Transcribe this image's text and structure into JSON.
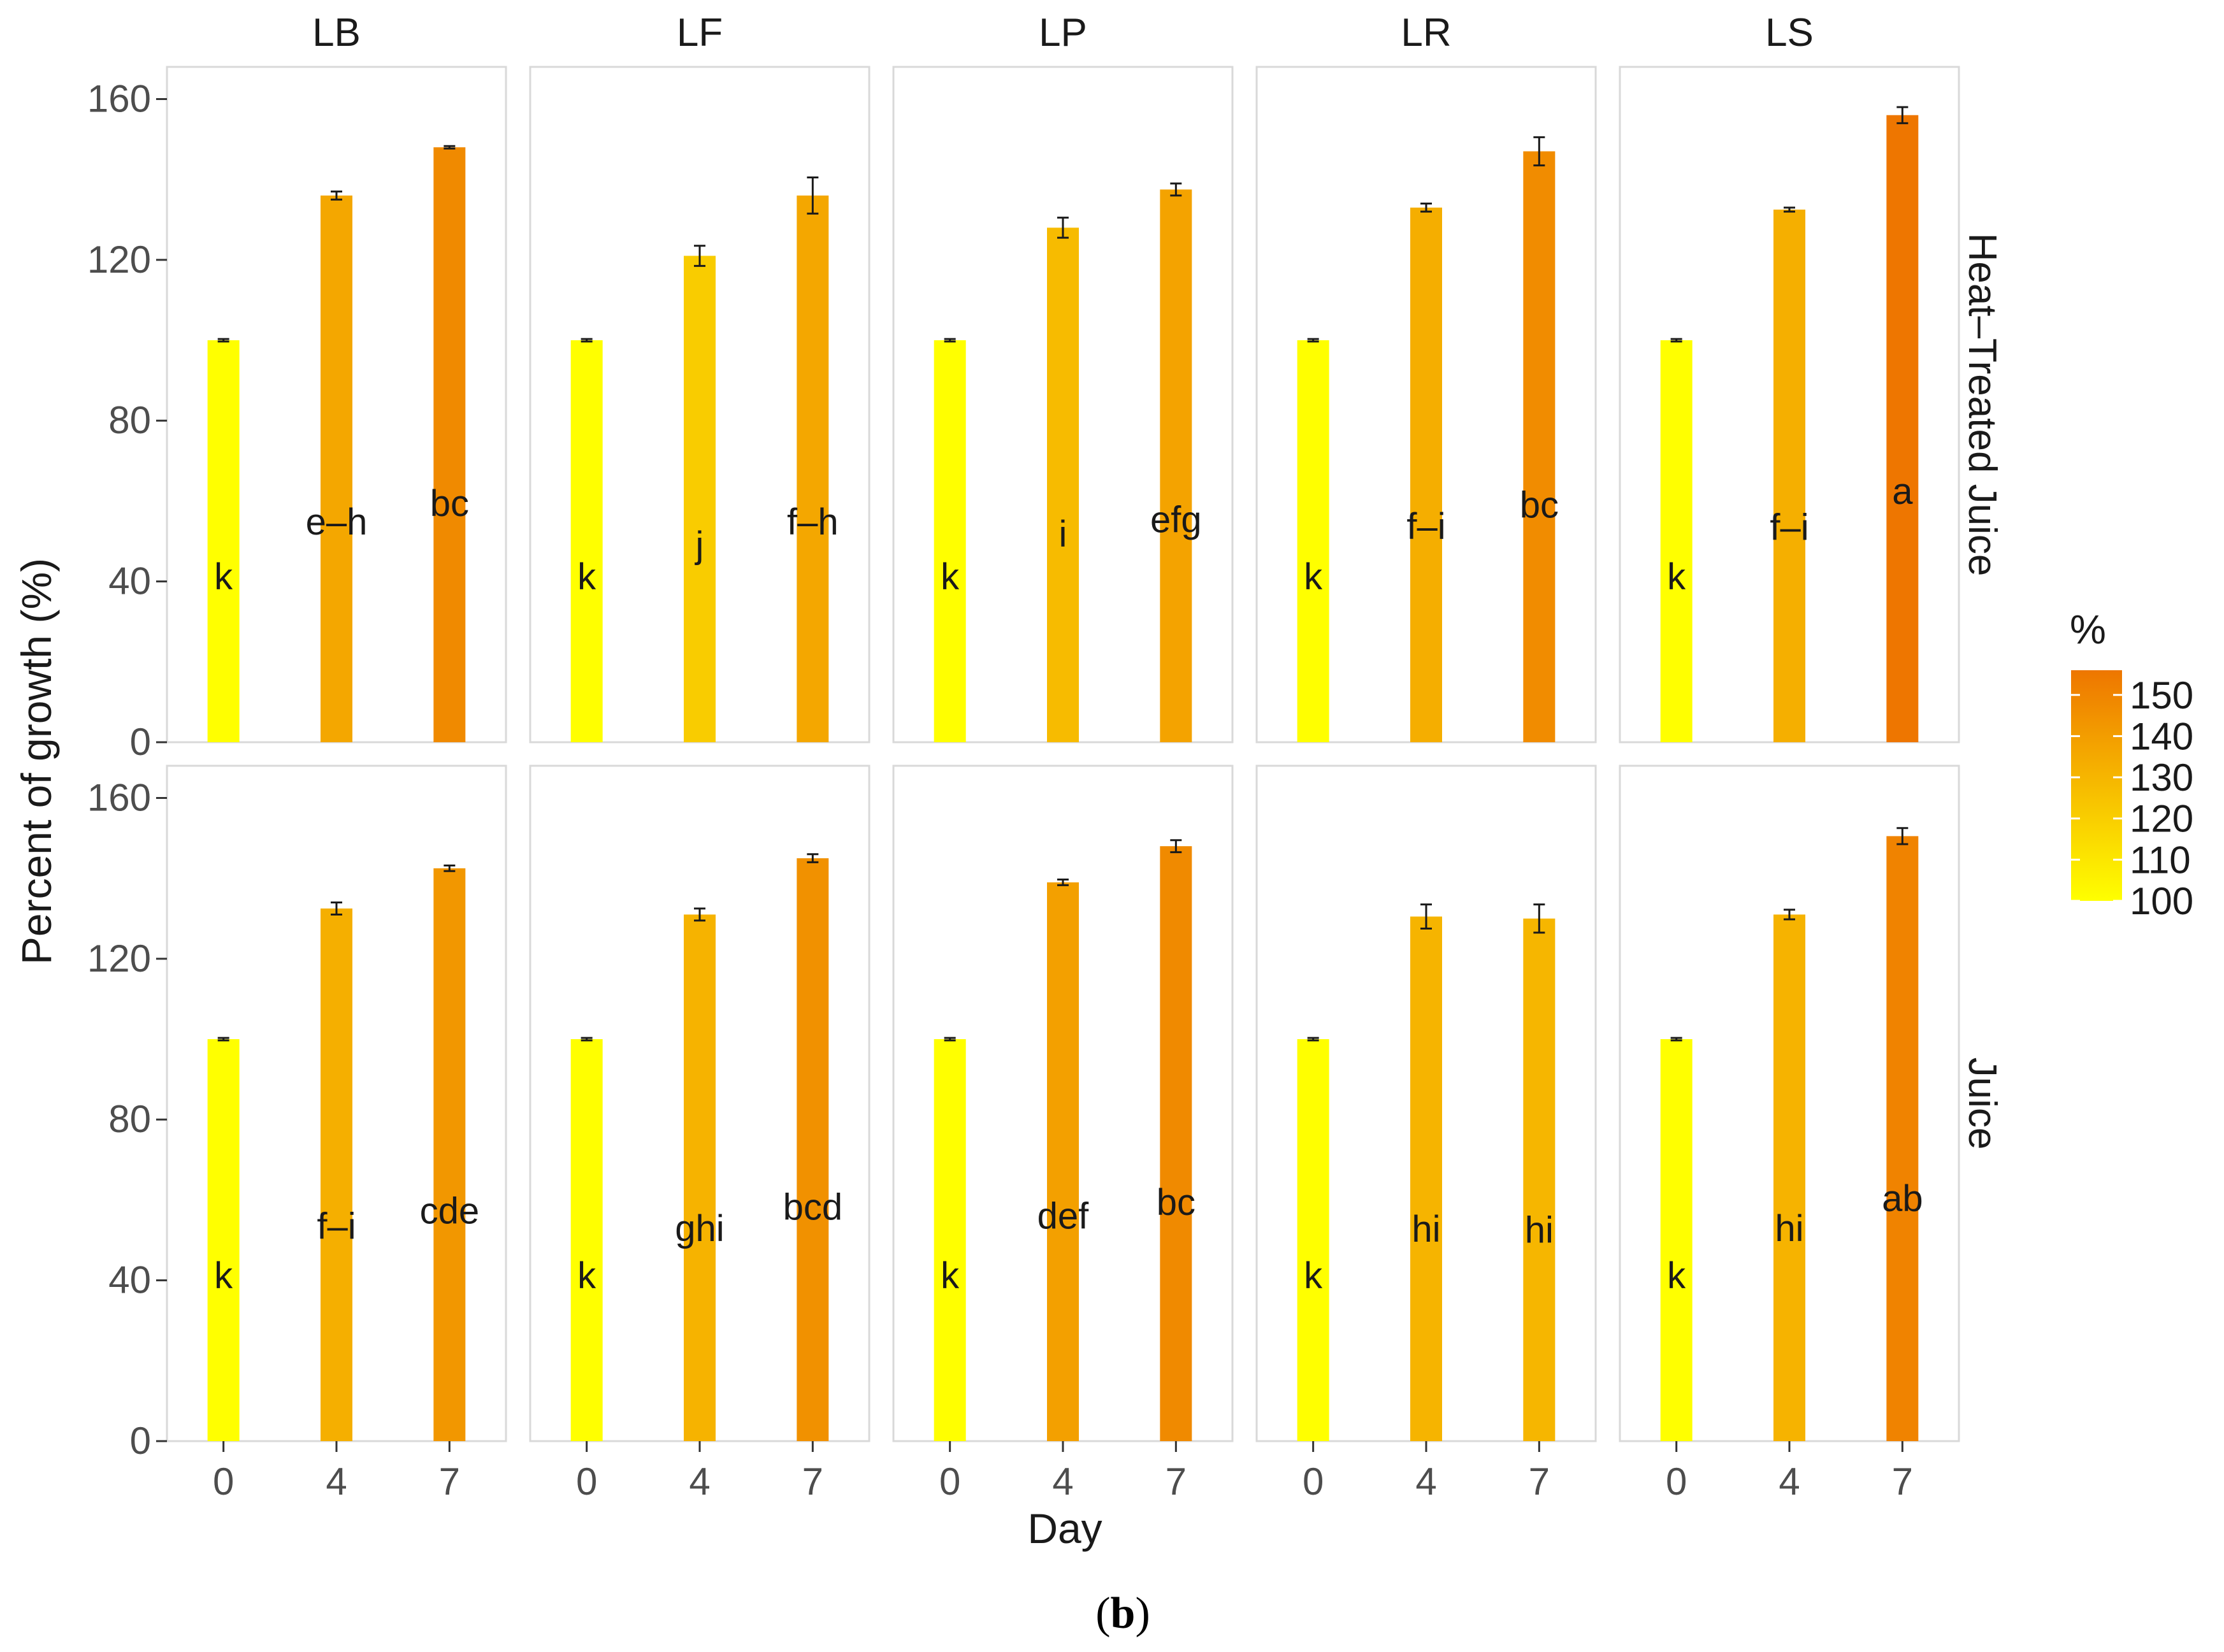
{
  "chart_data": {
    "type": "bar",
    "facets_columns": [
      "LB",
      "LF",
      "LP",
      "LR",
      "LS"
    ],
    "facets_rows": [
      "Heat–Treated Juice",
      "Juice"
    ],
    "categories": [
      "0",
      "4",
      "7"
    ],
    "xlabel": "Day",
    "ylabel": "Percent of growth (%)",
    "ylim": [
      0,
      168
    ],
    "yticks": [
      "0",
      "40",
      "80",
      "120",
      "160"
    ],
    "legend": {
      "title": "%",
      "position": "right",
      "min": 100,
      "max": 156,
      "low_color": "#ffff00",
      "high_color": "#ee7600",
      "ticks": [
        "100",
        "110",
        "120",
        "130",
        "140",
        "150"
      ]
    },
    "panels": [
      {
        "row": "Heat–Treated Juice",
        "column": "LB",
        "values": [
          100,
          136,
          148
        ],
        "errors": [
          0.3,
          1.0,
          0.3
        ],
        "letters": [
          "k",
          "e–h",
          "bc"
        ]
      },
      {
        "row": "Heat–Treated Juice",
        "column": "LF",
        "values": [
          100,
          121,
          136
        ],
        "errors": [
          0.3,
          2.5,
          4.5
        ],
        "letters": [
          "k",
          "j",
          "f–h"
        ]
      },
      {
        "row": "Heat–Treated Juice",
        "column": "LP",
        "values": [
          100,
          128,
          137.5
        ],
        "errors": [
          0.3,
          2.5,
          1.5
        ],
        "letters": [
          "k",
          "i",
          "efg"
        ]
      },
      {
        "row": "Heat–Treated Juice",
        "column": "LR",
        "values": [
          100,
          133,
          147
        ],
        "errors": [
          0.3,
          1.0,
          3.5
        ],
        "letters": [
          "k",
          "f–i",
          "bc"
        ]
      },
      {
        "row": "Heat–Treated Juice",
        "column": "LS",
        "values": [
          100,
          132.5,
          156
        ],
        "errors": [
          0.3,
          0.5,
          2.0
        ],
        "letters": [
          "k",
          "f–i",
          "a"
        ]
      },
      {
        "row": "Juice",
        "column": "LB",
        "values": [
          100,
          132.5,
          142.5
        ],
        "errors": [
          0.3,
          1.5,
          0.7
        ],
        "letters": [
          "k",
          "f–i",
          "cde"
        ]
      },
      {
        "row": "Juice",
        "column": "LF",
        "values": [
          100,
          131,
          145
        ],
        "errors": [
          0.3,
          1.5,
          1.0
        ],
        "letters": [
          "k",
          "ghi",
          "bcd"
        ]
      },
      {
        "row": "Juice",
        "column": "LP",
        "values": [
          100,
          139,
          148
        ],
        "errors": [
          0.3,
          0.7,
          1.5
        ],
        "letters": [
          "k",
          "def",
          "bc"
        ]
      },
      {
        "row": "Juice",
        "column": "LR",
        "values": [
          100,
          130.5,
          130
        ],
        "errors": [
          0.3,
          3.0,
          3.5
        ],
        "letters": [
          "k",
          "hi",
          "hi"
        ]
      },
      {
        "row": "Juice",
        "column": "LS",
        "values": [
          100,
          131,
          150.5
        ],
        "errors": [
          0.3,
          1.2,
          2.0
        ],
        "letters": [
          "k",
          "hi",
          "ab"
        ]
      }
    ]
  },
  "caption": {
    "open": "(",
    "label": "b",
    "close": ")"
  }
}
